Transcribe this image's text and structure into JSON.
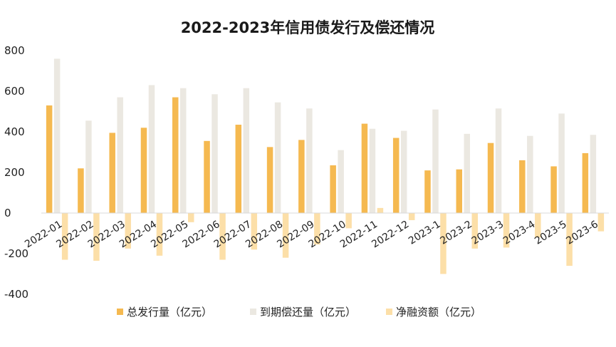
{
  "chart_data": {
    "type": "bar",
    "title": "2022-2023年信用债发行及偿还情况",
    "xlabel": "",
    "ylabel": "",
    "ylim": [
      -400,
      800
    ],
    "yticks": [
      -400,
      -200,
      0,
      200,
      400,
      600,
      800
    ],
    "ytick_labels": [
      "-400",
      "-200",
      "0",
      "200",
      "400",
      "600",
      "800"
    ],
    "grid": false,
    "legend_position": "bottom",
    "categories": [
      "2022-01",
      "2022-02",
      "2022-03",
      "2022-04",
      "2022-05",
      "2022-06",
      "2022-07",
      "2022-08",
      "2022-09",
      "2022-10",
      "2022-11",
      "2022-12",
      "2023-1",
      "2023-2",
      "2023-3",
      "2023-4",
      "2023-5",
      "2023-6"
    ],
    "series": [
      {
        "name": "总发行量（亿元）",
        "color": "#f5b950",
        "values": [
          530,
          220,
          395,
          420,
          570,
          355,
          435,
          325,
          360,
          235,
          440,
          370,
          210,
          215,
          345,
          260,
          230,
          295
        ]
      },
      {
        "name": "到期偿还量（亿元）",
        "color": "#ebe8e1",
        "values": [
          760,
          455,
          570,
          630,
          615,
          585,
          615,
          545,
          515,
          310,
          415,
          405,
          510,
          390,
          515,
          380,
          490,
          385
        ]
      },
      {
        "name": "净融资额（亿元）",
        "color": "#fcdfa8",
        "values": [
          -230,
          -235,
          -175,
          -210,
          -45,
          -230,
          -180,
          -220,
          -155,
          -75,
          25,
          -35,
          -300,
          -175,
          -170,
          -120,
          -260,
          -90
        ]
      }
    ]
  }
}
